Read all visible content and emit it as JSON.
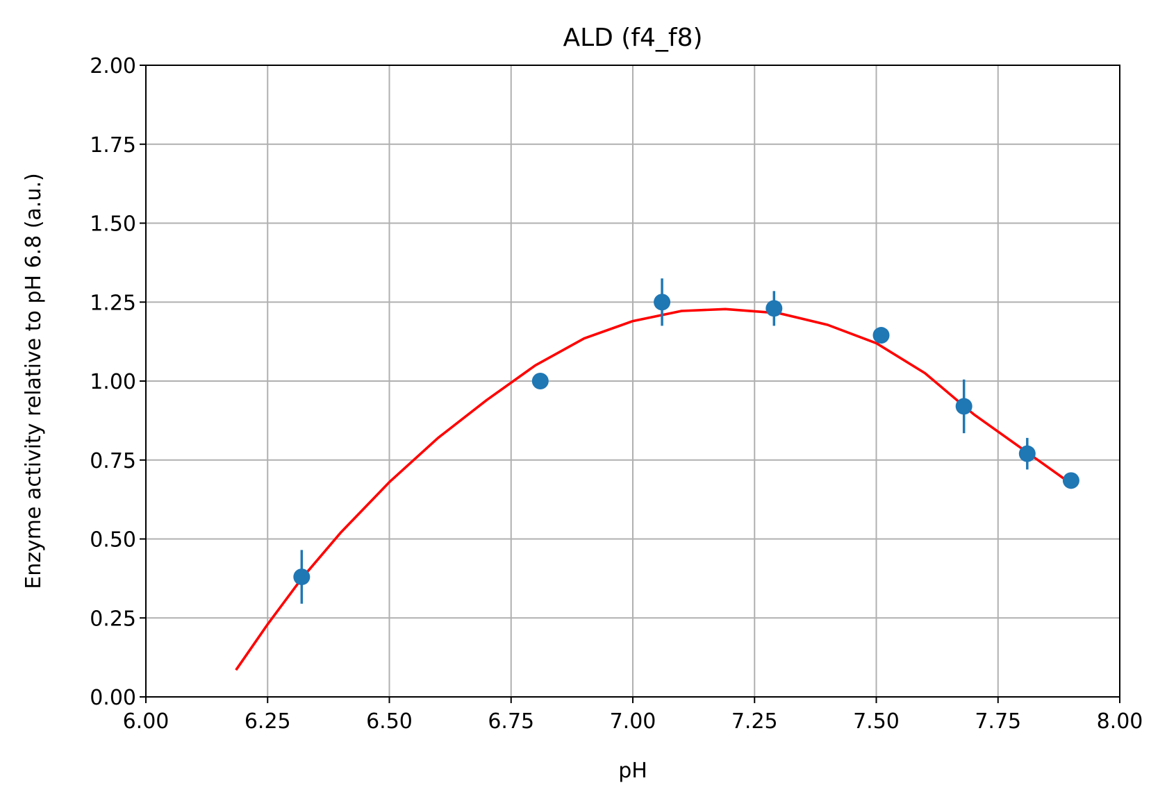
{
  "chart_data": {
    "type": "scatter",
    "title": "ALD (f4_f8)",
    "xlabel": "pH",
    "ylabel": "Enzyme activity relative to pH 6.8 (a.u.)",
    "xlim": [
      6.0,
      8.0
    ],
    "ylim": [
      0.0,
      2.0
    ],
    "xticks": [
      "6.00",
      "6.25",
      "6.50",
      "6.75",
      "7.00",
      "7.25",
      "7.50",
      "7.75",
      "8.00"
    ],
    "yticks": [
      "0.00",
      "0.25",
      "0.50",
      "0.75",
      "1.00",
      "1.25",
      "1.50",
      "1.75",
      "2.00"
    ],
    "grid": true,
    "series": [
      {
        "kind": "points-with-error",
        "color": "#1f77b4",
        "x": [
          6.32,
          6.81,
          7.06,
          7.29,
          7.51,
          7.68,
          7.81,
          7.9
        ],
        "y": [
          0.38,
          1.0,
          1.25,
          1.23,
          1.145,
          0.92,
          0.77,
          0.685
        ],
        "yerr": [
          0.085,
          0.0,
          0.075,
          0.055,
          0.0,
          0.085,
          0.05,
          0.0
        ]
      },
      {
        "kind": "fit-curve",
        "color": "#ff0000",
        "x": [
          6.185,
          6.25,
          6.32,
          6.4,
          6.5,
          6.6,
          6.7,
          6.8,
          6.9,
          7.0,
          7.1,
          7.19,
          7.3,
          7.4,
          7.5,
          7.6,
          7.7,
          7.8,
          7.9
        ],
        "y": [
          0.085,
          0.23,
          0.375,
          0.52,
          0.68,
          0.82,
          0.94,
          1.05,
          1.135,
          1.19,
          1.222,
          1.228,
          1.215,
          1.178,
          1.12,
          1.025,
          0.895,
          0.785,
          0.675
        ]
      }
    ]
  }
}
